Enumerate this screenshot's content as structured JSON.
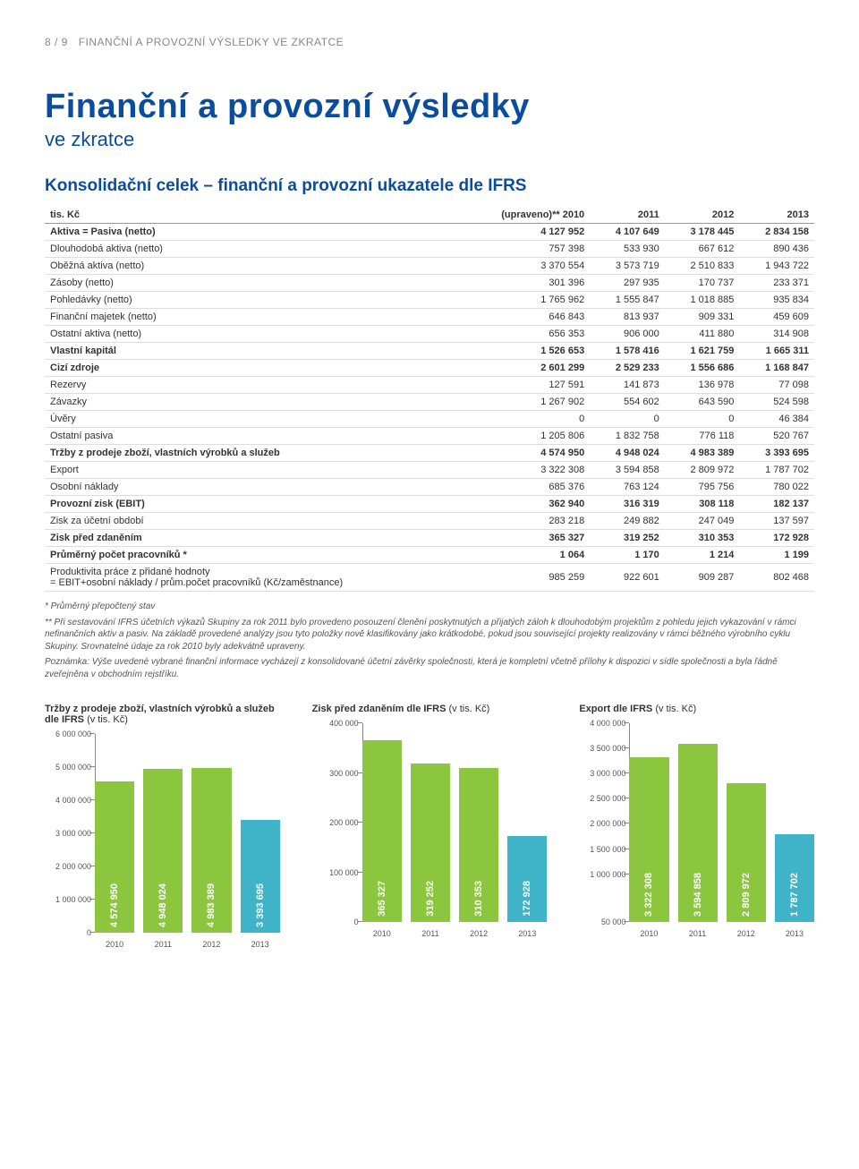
{
  "header": {
    "page": "8 / 9",
    "section": "FINANČNÍ A PROVOZNÍ VÝSLEDKY VE ZKRATCE"
  },
  "title": "Finanční a provozní výsledky",
  "subtitle": "ve zkratce",
  "tableTitle": "Konsolidační celek – finanční a provozní ukazatele dle IFRS",
  "table": {
    "headers": [
      "tis. Kč",
      "(upraveno)** 2010",
      "2011",
      "2012",
      "2013"
    ],
    "rows": [
      {
        "bold": true,
        "cells": [
          "Aktiva = Pasiva (netto)",
          "4 127 952",
          "4 107 649",
          "3 178 445",
          "2 834 158"
        ]
      },
      {
        "bold": false,
        "cells": [
          "Dlouhodobá aktiva (netto)",
          "757 398",
          "533 930",
          "667 612",
          "890 436"
        ]
      },
      {
        "bold": false,
        "cells": [
          "Oběžná aktiva (netto)",
          "3 370 554",
          "3 573 719",
          "2 510 833",
          "1 943 722"
        ]
      },
      {
        "bold": false,
        "cells": [
          "Zásoby (netto)",
          "301 396",
          "297 935",
          "170 737",
          "233 371"
        ]
      },
      {
        "bold": false,
        "cells": [
          "Pohledávky (netto)",
          "1 765 962",
          "1 555 847",
          "1 018 885",
          "935 834"
        ]
      },
      {
        "bold": false,
        "cells": [
          "Finanční majetek (netto)",
          "646 843",
          "813 937",
          "909 331",
          "459 609"
        ]
      },
      {
        "bold": false,
        "cells": [
          "Ostatní aktiva (netto)",
          "656 353",
          "906 000",
          "411 880",
          "314 908"
        ]
      },
      {
        "bold": true,
        "cells": [
          "Vlastní kapitál",
          "1 526 653",
          "1 578 416",
          "1 621 759",
          "1 665 311"
        ]
      },
      {
        "bold": true,
        "cells": [
          "Cizí zdroje",
          "2 601 299",
          "2 529 233",
          "1 556 686",
          "1 168 847"
        ]
      },
      {
        "bold": false,
        "cells": [
          "Rezervy",
          "127 591",
          "141 873",
          "136 978",
          "77 098"
        ]
      },
      {
        "bold": false,
        "cells": [
          "Závazky",
          "1 267 902",
          "554 602",
          "643 590",
          "524 598"
        ]
      },
      {
        "bold": false,
        "cells": [
          "Úvěry",
          "0",
          "0",
          "0",
          "46 384"
        ]
      },
      {
        "bold": false,
        "cells": [
          "Ostatní pasiva",
          "1 205 806",
          "1 832 758",
          "776 118",
          "520 767"
        ]
      },
      {
        "bold": true,
        "cells": [
          "Tržby z prodeje zboží, vlastních výrobků a služeb",
          "4 574 950",
          "4 948 024",
          "4 983 389",
          "3 393 695"
        ]
      },
      {
        "bold": false,
        "cells": [
          "Export",
          "3 322 308",
          "3 594 858",
          "2 809 972",
          "1 787 702"
        ]
      },
      {
        "bold": false,
        "cells": [
          "Osobní náklady",
          "685 376",
          "763 124",
          "795 756",
          "780 022"
        ]
      },
      {
        "bold": true,
        "cells": [
          "Provozní zisk (EBIT)",
          "362 940",
          "316 319",
          "308 118",
          "182 137"
        ]
      },
      {
        "bold": false,
        "cells": [
          "Zisk za účetní období",
          "283 218",
          "249 882",
          "247 049",
          "137 597"
        ]
      },
      {
        "bold": true,
        "cells": [
          "Zisk před zdaněním",
          "365 327",
          "319 252",
          "310 353",
          "172 928"
        ]
      },
      {
        "bold": true,
        "cells": [
          "Průměrný počet pracovníků *",
          "1 064",
          "1 170",
          "1 214",
          "1 199"
        ]
      },
      {
        "bold": false,
        "cells": [
          "Produktivita práce z přidané hodnoty\n= EBIT+osobní náklady / prům.počet pracovníků (Kč/zaměstnance)",
          "985 259",
          "922 601",
          "909 287",
          "802 468"
        ]
      }
    ]
  },
  "footnotes": [
    "* Průměrný přepočtený stav",
    "** Při sestavování IFRS účetních výkazů Skupiny za rok 2011 bylo provedeno posouzení členění poskytnutých a přijatých záloh k dlouhodobým projektům z pohledu jejich vykazování v rámci nefinančních aktiv a pasiv. Na základě provedené analýzy jsou tyto položky nově klasifikovány jako krátkodobé, pokud jsou související projekty realizovány v rámci běžného výrobního cyklu Skupiny. Srovnatelné údaje za rok 2010 byly adekvátně upraveny.",
    "Poznámka: Výše uvedené vybrané finanční informace vycházejí z konsolidované účetní závěrky společnosti, která je kompletní včetně přílohy k dispozici v sídle společnosti a byla řádně zveřejněna v obchodním rejstříku."
  ],
  "charts": [
    {
      "title": "Tržby z prodeje zboží, vlastních výrobků a služeb dle IFRS",
      "unit": "(v tis. Kč)",
      "categories": [
        "2010",
        "2011",
        "2012",
        "2013"
      ],
      "values": [
        4574950,
        4948024,
        4983389,
        3393695
      ],
      "value_labels": [
        "4 574 950",
        "4 948 024",
        "4 983 389",
        "3 393 695"
      ],
      "bar_colors": [
        "#8cc63f",
        "#8cc63f",
        "#8cc63f",
        "#3fb4c8"
      ],
      "ymin": 0,
      "ymax": 6000000,
      "ystep": 1000000,
      "ytick_labels": [
        "0",
        "1 000 000",
        "2 000 000",
        "3 000 000",
        "4 000 000",
        "5 000 000",
        "6 000 000"
      ]
    },
    {
      "title": "Zisk před zdaněním dle IFRS",
      "unit": "(v tis. Kč)",
      "categories": [
        "2010",
        "2011",
        "2012",
        "2013"
      ],
      "values": [
        365327,
        319252,
        310353,
        172928
      ],
      "value_labels": [
        "365 327",
        "319 252",
        "310 353",
        "172 928"
      ],
      "bar_colors": [
        "#8cc63f",
        "#8cc63f",
        "#8cc63f",
        "#3fb4c8"
      ],
      "ymin": 0,
      "ymax": 400000,
      "ystep": 100000,
      "ytick_labels": [
        "0",
        "100 000",
        "200 000",
        "300 000",
        "400 000"
      ]
    },
    {
      "title": "Export dle IFRS",
      "unit": "(v tis. Kč)",
      "categories": [
        "2010",
        "2011",
        "2012",
        "2013"
      ],
      "values": [
        3322308,
        3594858,
        2809972,
        1787702
      ],
      "value_labels": [
        "3 322 308",
        "3 594 858",
        "2 809 972",
        "1 787 702"
      ],
      "bar_colors": [
        "#8cc63f",
        "#8cc63f",
        "#8cc63f",
        "#3fb4c8"
      ],
      "ymin": 50000,
      "ymax": 4000000,
      "ystep": 500000,
      "ytick_labels": [
        "50 000",
        "1 000 000",
        "1 500 000",
        "2 000 000",
        "2 500 000",
        "3 000 000",
        "3 500 000",
        "4 000 000"
      ]
    }
  ],
  "colors": {
    "heading": "#0a4d9e",
    "bar_primary": "#8cc63f",
    "bar_accent": "#3fb4c8",
    "text": "#333333"
  }
}
